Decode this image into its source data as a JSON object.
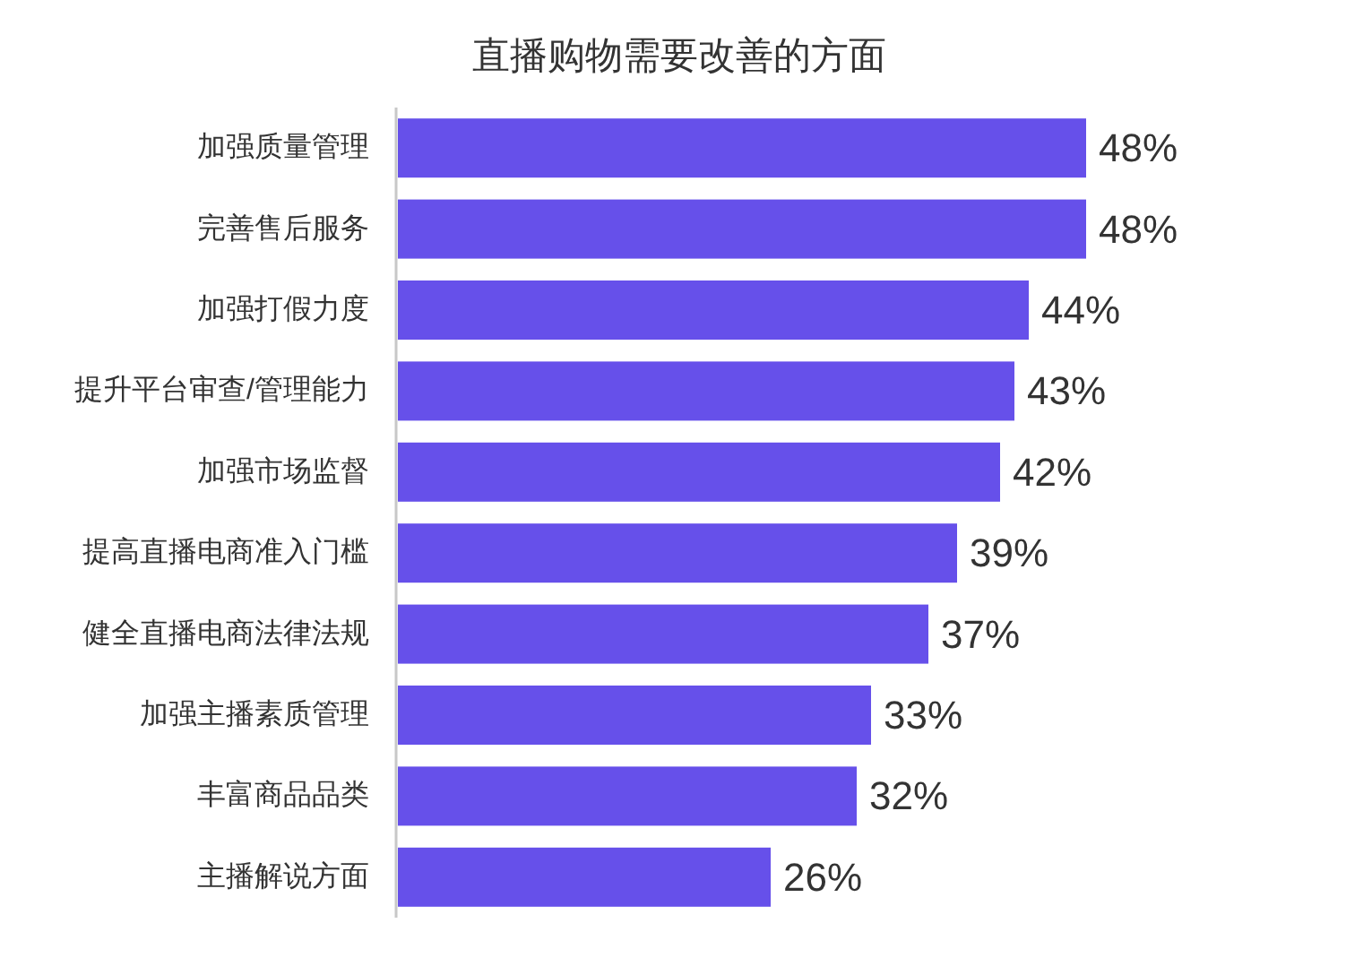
{
  "chart_data": {
    "type": "bar",
    "orientation": "horizontal",
    "title": "直播购物需要改善的方面",
    "categories": [
      "加强质量管理",
      "完善售后服务",
      "加强打假力度",
      "提升平台审查/管理能力",
      "加强市场监督",
      "提高直播电商准入门槛",
      "健全直播电商法律法规",
      "加强主播素质管理",
      "丰富商品品类",
      "主播解说方面"
    ],
    "values": [
      48,
      48,
      44,
      43,
      42,
      39,
      37,
      33,
      32,
      26
    ],
    "value_labels": [
      "48%",
      "48%",
      "44%",
      "43%",
      "42%",
      "39%",
      "37%",
      "33%",
      "32%",
      "26%"
    ],
    "color": "#6650ea"
  }
}
